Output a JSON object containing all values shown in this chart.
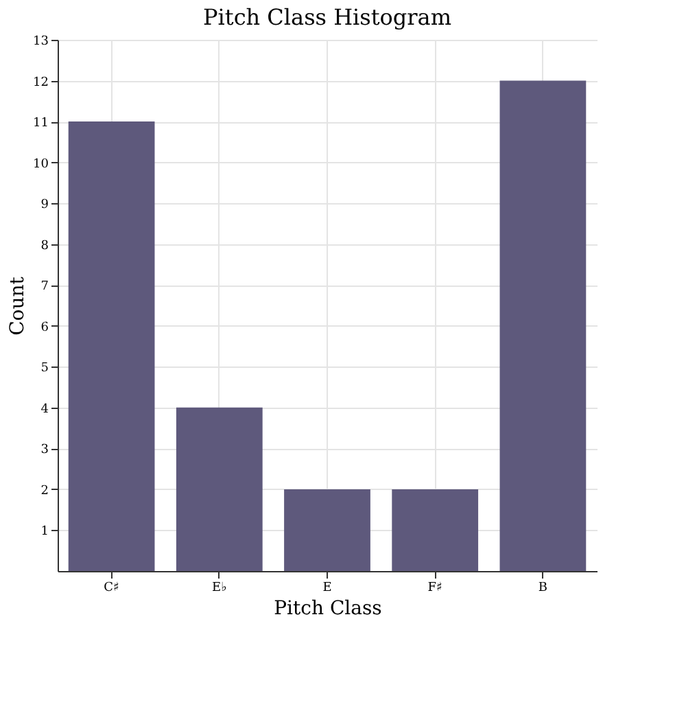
{
  "chart_data": {
    "type": "bar",
    "title": "Pitch Class Histogram",
    "xlabel": "Pitch Class",
    "ylabel": "Count",
    "categories": [
      "C♯",
      "E♭",
      "E",
      "F♯",
      "B"
    ],
    "values": [
      11,
      4,
      2,
      2,
      12
    ],
    "color": "#5e597c",
    "ylim": [
      0,
      13
    ],
    "yticks": [
      1,
      2,
      3,
      4,
      5,
      6,
      7,
      8,
      9,
      10,
      11,
      12,
      13
    ],
    "grid": true
  }
}
